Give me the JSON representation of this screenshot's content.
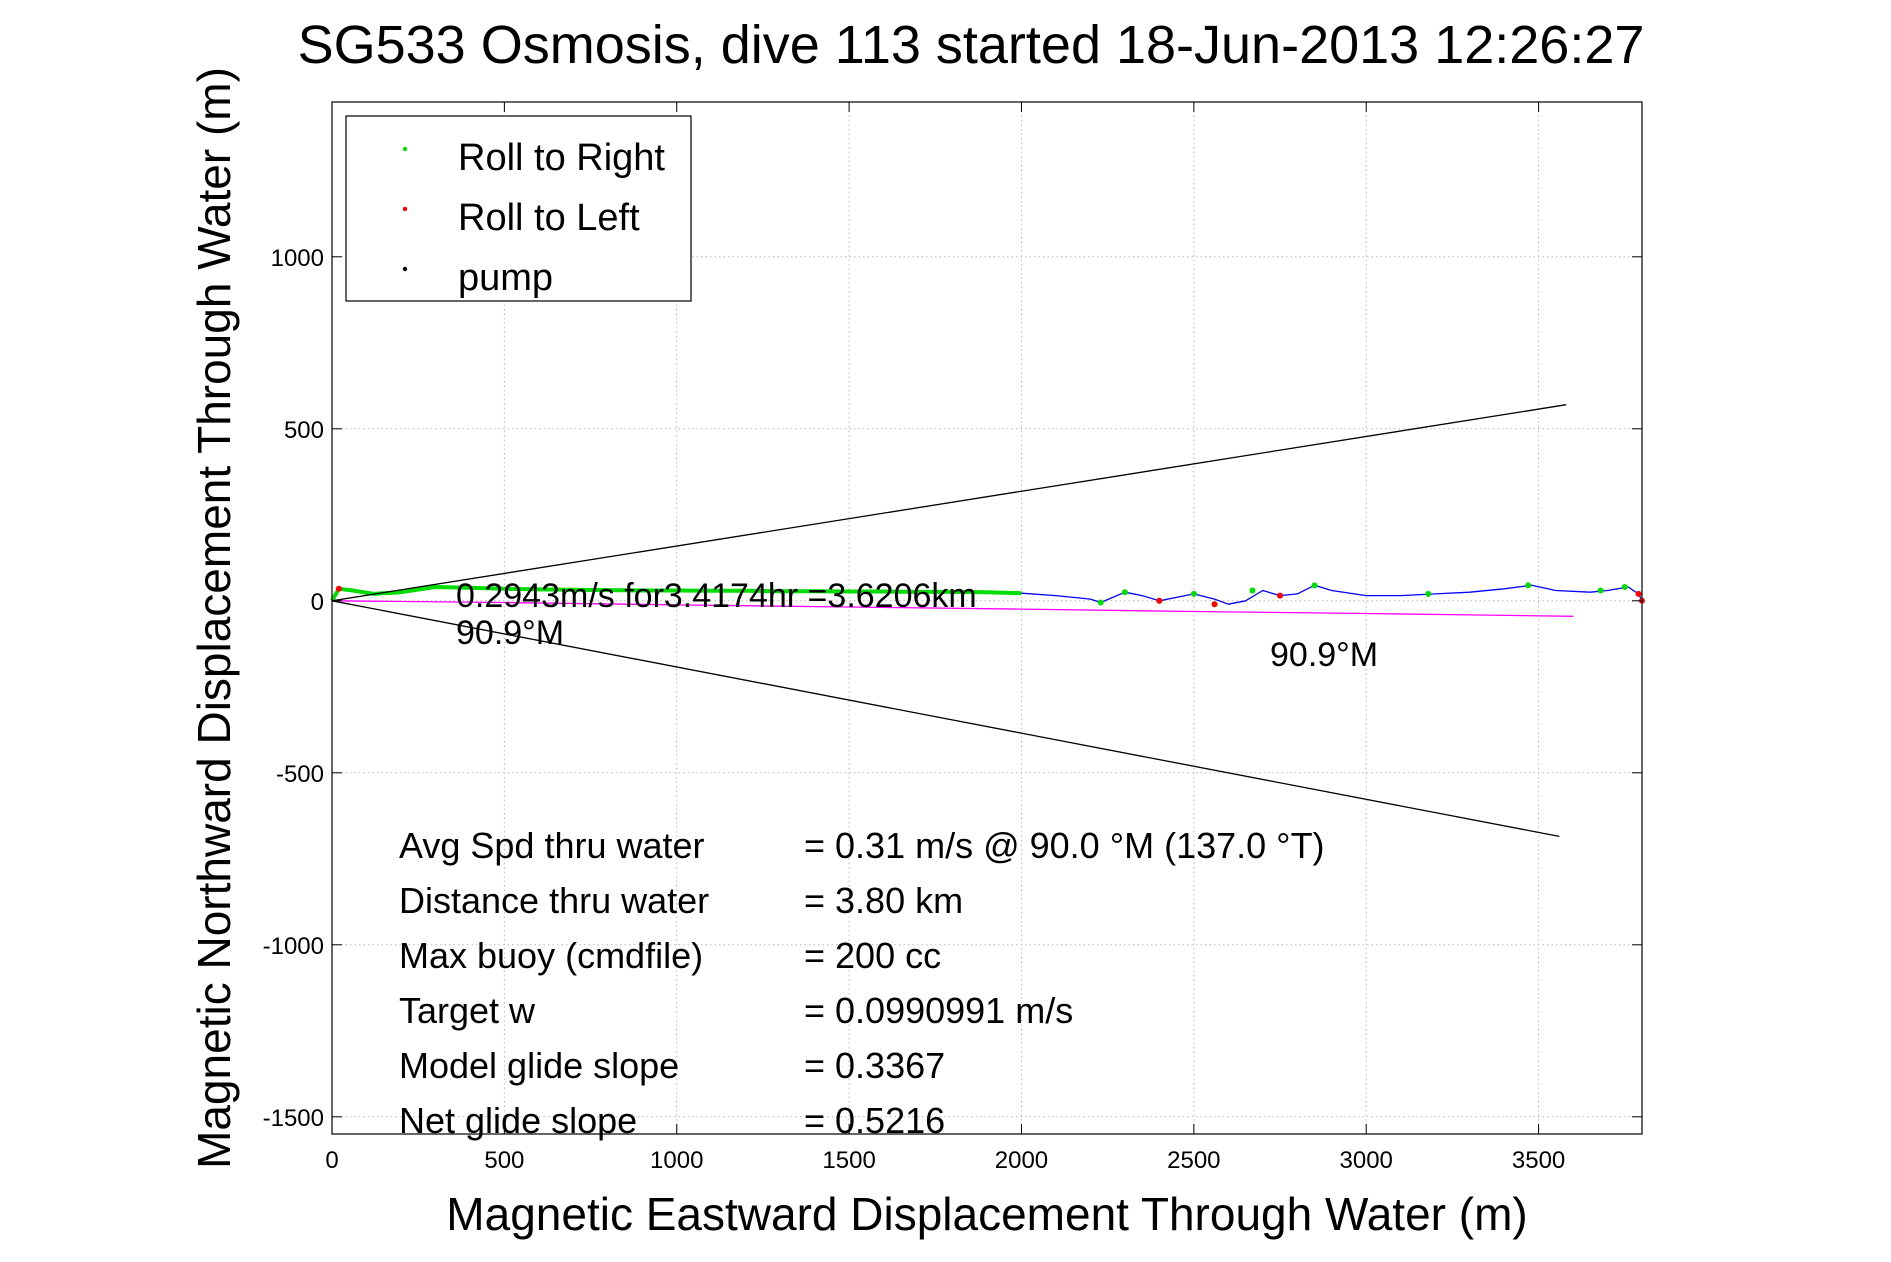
{
  "chart_data": {
    "type": "line",
    "title": "SG533 Osmosis, dive 113 started 18-Jun-2013 12:26:27",
    "xlabel": "Magnetic Eastward Displacement Through Water (m)",
    "ylabel": "Magnetic Northward Displacement Through Water (m)",
    "xlim": [
      0,
      3800
    ],
    "ylim": [
      -1550,
      1450
    ],
    "xticks": [
      0,
      500,
      1000,
      1500,
      2000,
      2500,
      3000,
      3500
    ],
    "yticks": [
      -1500,
      -1000,
      -500,
      0,
      500,
      1000
    ],
    "grid": true,
    "legend": {
      "position": "top-left",
      "entries": [
        {
          "label": "Roll to Right",
          "color": "#00dd00"
        },
        {
          "label": "Roll to Left",
          "color": "#ff0000"
        },
        {
          "label": "pump",
          "color": "#000000"
        }
      ]
    },
    "series": [
      {
        "color": "#0000ff",
        "x": [
          0,
          20,
          60,
          120,
          200,
          300,
          400,
          500,
          600,
          700,
          800,
          900,
          1000,
          1100,
          1200,
          1300,
          1400,
          1500,
          1600,
          1700,
          1800,
          1900,
          2000,
          2100,
          2200,
          2230,
          2300,
          2350,
          2400,
          2450,
          2500,
          2560,
          2600,
          2650,
          2700,
          2750,
          2800,
          2850,
          2900,
          3000,
          3100,
          3200,
          3300,
          3400,
          3480,
          3550,
          3650,
          3700,
          3760,
          3790,
          3800
        ],
        "y": [
          0,
          35,
          30,
          20,
          25,
          40,
          38,
          35,
          33,
          32,
          31,
          30,
          30,
          29,
          29,
          28,
          28,
          27,
          27,
          26,
          26,
          25,
          22,
          15,
          5,
          -5,
          25,
          15,
          0,
          10,
          20,
          5,
          -10,
          0,
          30,
          15,
          20,
          45,
          30,
          15,
          15,
          20,
          25,
          35,
          45,
          30,
          25,
          30,
          40,
          20,
          0
        ]
      },
      {
        "color": "#00dd00",
        "x": [
          0,
          20,
          60,
          120,
          200,
          300,
          400,
          500,
          600,
          700,
          800,
          900,
          1000,
          1100,
          1200,
          1300,
          1400,
          1500,
          1600,
          1700,
          1800,
          1900,
          2000
        ],
        "y": [
          0,
          35,
          30,
          20,
          25,
          40,
          38,
          35,
          33,
          32,
          31,
          30,
          30,
          29,
          29,
          28,
          28,
          27,
          27,
          26,
          26,
          25,
          22
        ]
      },
      {
        "color": "#ff00ff",
        "x": [
          0,
          500,
          1000,
          1500,
          2000,
          2500,
          3000,
          3300,
          3600
        ],
        "y": [
          0,
          -5,
          -12,
          -18,
          -24,
          -31,
          -37,
          -41,
          -45
        ]
      },
      {
        "color": "#000000",
        "x": [
          0,
          3580
        ],
        "y": [
          0,
          570
        ]
      },
      {
        "color": "#000000",
        "x": [
          0,
          3560
        ],
        "y": [
          0,
          -685
        ]
      }
    ],
    "right_markers": {
      "x": [
        2230,
        2300,
        2400,
        2500,
        2560,
        2670,
        2850,
        3180,
        3470,
        3680,
        3750
      ],
      "y": [
        -5,
        25,
        0,
        20,
        -10,
        30,
        45,
        20,
        45,
        30,
        40
      ]
    },
    "left_markers": {
      "x": [
        20,
        2400,
        2560,
        2750,
        3790,
        3800
      ],
      "y": [
        35,
        0,
        -10,
        15,
        20,
        0
      ]
    },
    "annotations": {
      "speed_text": "0.2943m/s for3.4174hr =3.6206km",
      "heading_left": "90.9°M",
      "heading_right": "90.9°M"
    },
    "stats": [
      {
        "label": "Avg Spd thru water",
        "value": "=  0.31 m/s @  90.0 °M (137.0 °T)"
      },
      {
        "label": "Distance thru water",
        "value": "=  3.80 km"
      },
      {
        "label": "Max buoy (cmdfile)",
        "value": "= 200 cc"
      },
      {
        "label": "Target w",
        "value": "= 0.0990991 m/s"
      },
      {
        "label": "Model glide slope",
        "value": "= 0.3367"
      },
      {
        "label": "Net glide slope",
        "value": "= 0.5216"
      }
    ]
  }
}
